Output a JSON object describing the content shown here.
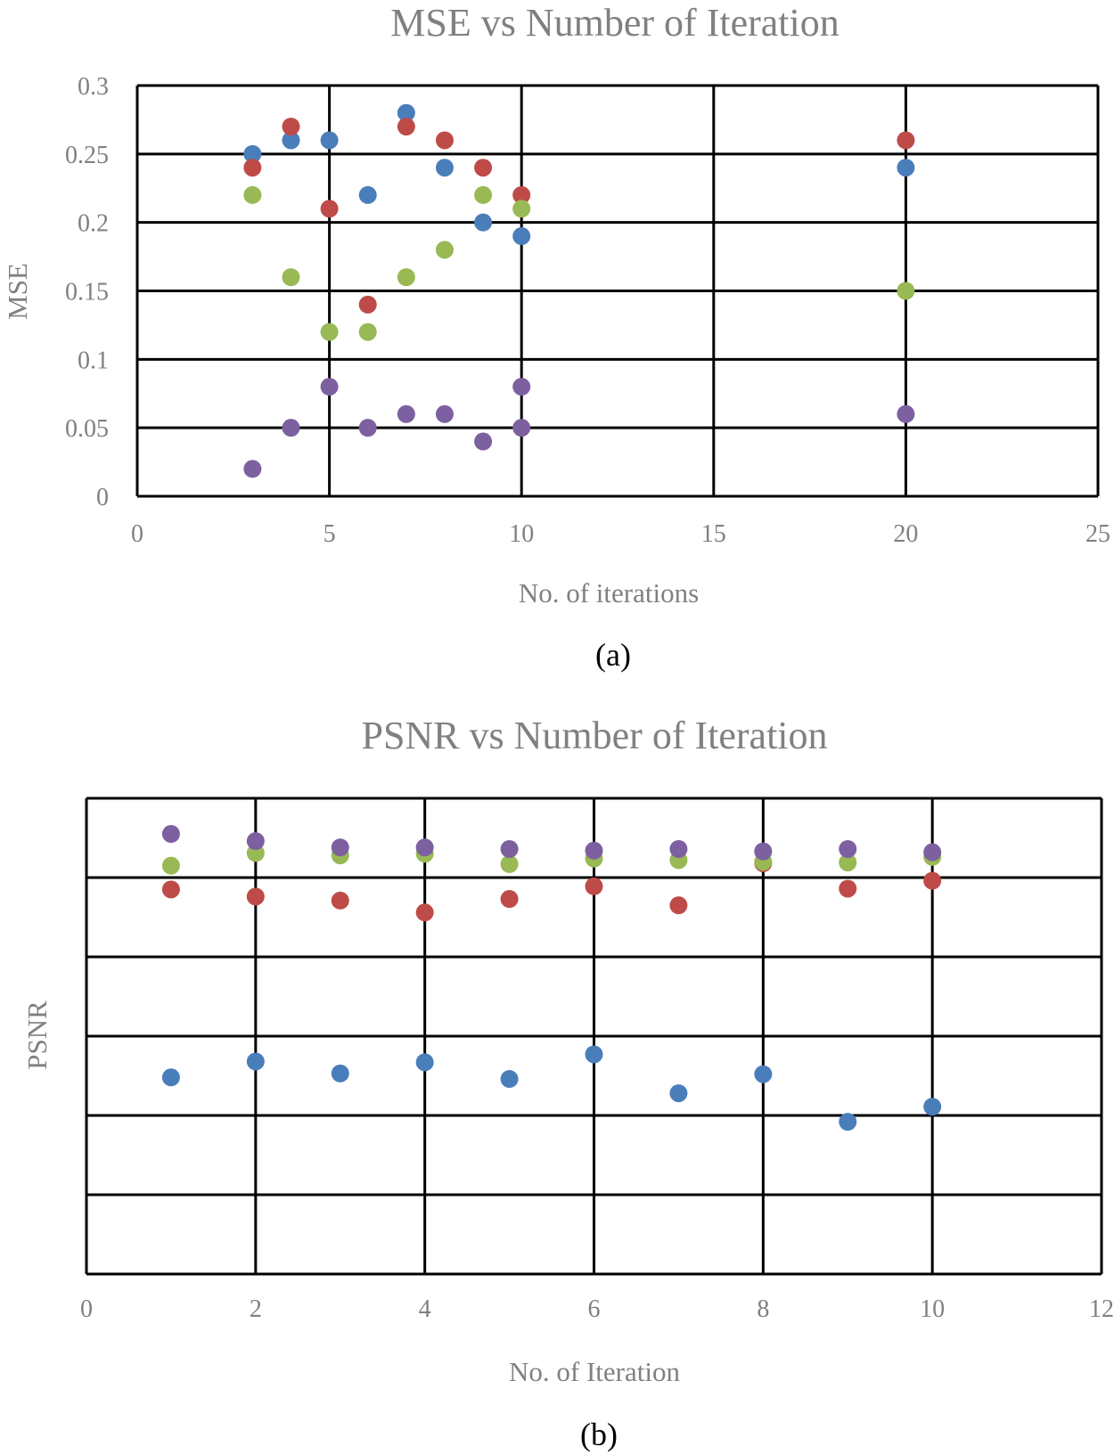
{
  "chart_data": [
    {
      "type": "scatter",
      "title": "MSE vs Number of Iteration",
      "xlabel": "No. of iterations",
      "ylabel": "MSE",
      "caption": "(a)",
      "xlim": [
        0,
        25
      ],
      "ylim": [
        0,
        0.3
      ],
      "x_ticks": [
        0,
        5,
        10,
        15,
        20,
        25
      ],
      "y_ticks": [
        0,
        0.05,
        0.1,
        0.15,
        0.2,
        0.25,
        0.3
      ],
      "x_tick_labels": [
        "0",
        "5",
        "10",
        "15",
        "20",
        "25"
      ],
      "y_tick_labels": [
        "0",
        "0.05",
        "0.1",
        "0.15",
        "0.2",
        "0.25",
        "0.3"
      ],
      "grid": true,
      "series": [
        {
          "name": "blue",
          "color": "#4a7ebb",
          "x": [
            3,
            4,
            5,
            6,
            7,
            8,
            9,
            10,
            20
          ],
          "y": [
            0.25,
            0.26,
            0.26,
            0.22,
            0.28,
            0.24,
            0.2,
            0.19,
            0.24
          ]
        },
        {
          "name": "red",
          "color": "#be4b48",
          "x": [
            3,
            4,
            5,
            6,
            7,
            8,
            9,
            10,
            20
          ],
          "y": [
            0.24,
            0.27,
            0.21,
            0.14,
            0.27,
            0.26,
            0.24,
            0.22,
            0.26
          ]
        },
        {
          "name": "green",
          "color": "#98b954",
          "x": [
            3,
            4,
            5,
            6,
            7,
            8,
            9,
            10,
            20
          ],
          "y": [
            0.22,
            0.16,
            0.12,
            0.12,
            0.16,
            0.18,
            0.22,
            0.21,
            0.15
          ]
        },
        {
          "name": "purple",
          "color": "#7d60a0",
          "x": [
            3,
            4,
            5,
            6,
            7,
            8,
            9,
            10,
            10,
            20
          ],
          "y": [
            0.02,
            0.05,
            0.08,
            0.05,
            0.06,
            0.06,
            0.04,
            0.08,
            0.05,
            0.06
          ]
        }
      ]
    },
    {
      "type": "scatter",
      "title": "PSNR vs Number of Iteration",
      "xlabel": "No. of Iteration",
      "ylabel": "PSNR",
      "caption": "(b)",
      "xlim": [
        0,
        12
      ],
      "ylim": [
        0,
        60
      ],
      "x_ticks": [
        0,
        2,
        4,
        6,
        8,
        10,
        12
      ],
      "y_ticks": [
        0,
        10,
        20,
        30,
        40,
        50,
        60
      ],
      "x_tick_labels": [
        "0",
        "2",
        "4",
        "6",
        "8",
        "10",
        "12"
      ],
      "y_tick_labels": [],
      "grid": true,
      "series": [
        {
          "name": "blue",
          "color": "#4a7ebb",
          "x": [
            1,
            2,
            3,
            4,
            5,
            6,
            7,
            8,
            9,
            10
          ],
          "y": [
            24.8,
            26.8,
            25.3,
            26.7,
            24.6,
            27.7,
            22.8,
            25.2,
            19.2,
            21.1
          ]
        },
        {
          "name": "red",
          "color": "#be4b48",
          "x": [
            1,
            2,
            3,
            4,
            5,
            6,
            7,
            8,
            9,
            10
          ],
          "y": [
            48.5,
            47.6,
            47.1,
            45.6,
            47.3,
            48.9,
            46.5,
            51.8,
            48.6,
            49.6
          ]
        },
        {
          "name": "green",
          "color": "#98b954",
          "x": [
            1,
            2,
            3,
            4,
            5,
            6,
            7,
            8,
            9,
            10
          ],
          "y": [
            51.5,
            53.1,
            52.8,
            53.0,
            51.7,
            52.4,
            52.2,
            52.0,
            51.9,
            52.6
          ]
        },
        {
          "name": "purple",
          "color": "#7d60a0",
          "x": [
            1,
            2,
            3,
            4,
            5,
            6,
            7,
            8,
            9,
            10
          ],
          "y": [
            55.5,
            54.6,
            53.8,
            53.8,
            53.6,
            53.4,
            53.6,
            53.3,
            53.6,
            53.2
          ]
        }
      ]
    }
  ]
}
